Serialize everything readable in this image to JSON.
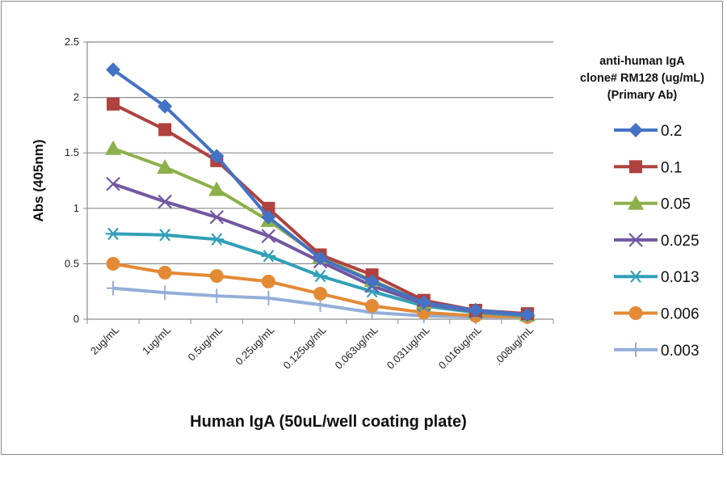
{
  "chart_data": {
    "type": "line",
    "xlabel": "Human IgA (50uL/well coating plate)",
    "ylabel": "Abs (405nm)",
    "categories": [
      "2ug/mL",
      "1ug/mL",
      "0.5ug/mL",
      "0.25ug/mL",
      "0.125ug/mL",
      "0.063ug/mL",
      "0.031ug/mL",
      "0.016ug/mL",
      ".008ug/mL"
    ],
    "ylim": [
      0,
      2.5
    ],
    "yticks": [
      "0",
      "0.5",
      "1",
      "1.5",
      "2",
      "2.5"
    ],
    "grid": true,
    "legend_title": [
      "anti-human IgA",
      "clone# RM128 (ug/mL)",
      "(Primary Ab)"
    ],
    "legend_position": "right",
    "series": [
      {
        "name": "0.2",
        "color": "#4472C4",
        "marker": "diamond",
        "values": [
          2.25,
          1.92,
          1.47,
          0.92,
          0.55,
          0.34,
          0.15,
          0.08,
          0.04
        ]
      },
      {
        "name": "0.1",
        "color": "#B0413E",
        "marker": "square",
        "values": [
          1.94,
          1.71,
          1.43,
          1.0,
          0.58,
          0.4,
          0.17,
          0.08,
          0.05
        ]
      },
      {
        "name": "0.05",
        "color": "#8CB04A",
        "marker": "triangle",
        "values": [
          1.54,
          1.37,
          1.17,
          0.89,
          0.56,
          0.35,
          0.15,
          0.08,
          0.04
        ]
      },
      {
        "name": "0.025",
        "color": "#7257A0",
        "marker": "x",
        "values": [
          1.22,
          1.06,
          0.92,
          0.75,
          0.52,
          0.3,
          0.14,
          0.07,
          0.04
        ]
      },
      {
        "name": "0.013",
        "color": "#31A0B8",
        "marker": "star",
        "values": [
          0.77,
          0.76,
          0.72,
          0.57,
          0.39,
          0.25,
          0.12,
          0.06,
          0.03
        ]
      },
      {
        "name": "0.006",
        "color": "#E38A35",
        "marker": "circle",
        "values": [
          0.5,
          0.42,
          0.39,
          0.34,
          0.23,
          0.12,
          0.06,
          0.03,
          0.02
        ]
      },
      {
        "name": "0.003",
        "color": "#93AED8",
        "marker": "plus",
        "values": [
          0.28,
          0.24,
          0.21,
          0.19,
          0.13,
          0.06,
          0.03,
          0.02,
          0.02
        ]
      }
    ]
  }
}
